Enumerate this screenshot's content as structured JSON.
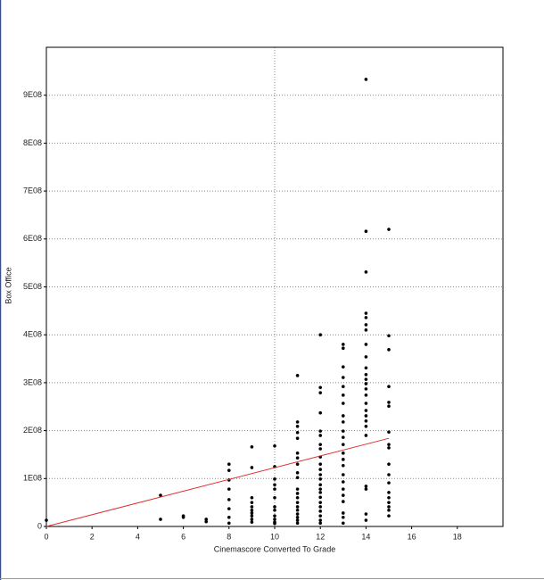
{
  "chart_data": {
    "type": "scatter",
    "x_label": "Cinemascore Converted To Grade",
    "y_label": "Box Office",
    "xlim": [
      0,
      20
    ],
    "ylim": [
      0,
      1000000000
    ],
    "xticks": [
      0,
      2,
      4,
      6,
      8,
      10,
      12,
      14,
      16,
      18
    ],
    "yticks": [
      0,
      {
        "value": 100000000,
        "label": "1E08"
      },
      {
        "value": 200000000,
        "label": "2E08"
      },
      {
        "value": 300000000,
        "label": "3E08"
      },
      {
        "value": 400000000,
        "label": "4E08"
      },
      {
        "value": 500000000,
        "label": "5E08"
      },
      {
        "value": 600000000,
        "label": "6E08"
      },
      {
        "value": 700000000,
        "label": "7E08"
      },
      {
        "value": 800000000,
        "label": "8E08"
      },
      {
        "value": 900000000,
        "label": "9E08"
      }
    ],
    "grid": true,
    "x_reference_line": 10,
    "color": "#000000",
    "fit_line": {
      "x": [
        0,
        15
      ],
      "y": [
        0,
        184000000
      ],
      "color": "#e03030"
    },
    "x": [
      0,
      5,
      5,
      6,
      6,
      7,
      7,
      8,
      8,
      8,
      8,
      8,
      8,
      8,
      8,
      9,
      9,
      9,
      9,
      9,
      9,
      9,
      9,
      9,
      9,
      10,
      10,
      10,
      10,
      10,
      10,
      10,
      10,
      10,
      10,
      10,
      10,
      11,
      11,
      11,
      11,
      11,
      11,
      11,
      11,
      11,
      11,
      11,
      11,
      11,
      11,
      11,
      11,
      11,
      11,
      11,
      11,
      12,
      12,
      12,
      12,
      12,
      12,
      12,
      12,
      12,
      12,
      12,
      12,
      12,
      12,
      12,
      12,
      12,
      12,
      12,
      12,
      12,
      12,
      12,
      13,
      13,
      13,
      13,
      13,
      13,
      13,
      13,
      13,
      13,
      13,
      13,
      13,
      13,
      13,
      13,
      13,
      13,
      13,
      13,
      13,
      13,
      13,
      14,
      14,
      14,
      14,
      14,
      14,
      14,
      14,
      14,
      14,
      14,
      14,
      14,
      14,
      14,
      14,
      14,
      14,
      14,
      14,
      14,
      14,
      14,
      14,
      14,
      15,
      15,
      15,
      15,
      15,
      15,
      15,
      15,
      15,
      15,
      15,
      15,
      15,
      15,
      15,
      15,
      15,
      15
    ],
    "values": [
      13000000.0,
      65000000.0,
      15000000.0,
      22000000.0,
      19000000.0,
      15000000.0,
      10000000.0,
      130000000.0,
      117000000.0,
      97000000.0,
      78000000.0,
      56000000.0,
      37000000.0,
      19000000.0,
      7000000.0,
      166000000.0,
      123000000.0,
      60000000.0,
      50000000.0,
      41000000.0,
      34000000.0,
      28000000.0,
      22000000.0,
      15000000.0,
      9000000.0,
      168000000.0,
      125000000.0,
      99000000.0,
      87000000.0,
      78000000.0,
      60000000.0,
      41000000.0,
      34000000.0,
      22000000.0,
      15000000.0,
      9000000.0,
      6000000.0,
      315000000.0,
      218000000.0,
      209000000.0,
      196000000.0,
      184000000.0,
      153000000.0,
      143000000.0,
      130000000.0,
      112000000.0,
      102000000.0,
      78000000.0,
      69000000.0,
      60000000.0,
      50000000.0,
      41000000.0,
      34000000.0,
      26000000.0,
      19000000.0,
      13000000.0,
      7000000.0,
      400000000.0,
      290000000.0,
      279000000.0,
      237000000.0,
      199000000.0,
      190000000.0,
      171000000.0,
      162000000.0,
      145000000.0,
      130000000.0,
      119000000.0,
      108000000.0,
      99000000.0,
      87000000.0,
      78000000.0,
      71000000.0,
      61000000.0,
      50000000.0,
      41000000.0,
      32000000.0,
      22000000.0,
      13000000.0,
      7000000.0,
      380000000.0,
      372000000.0,
      333000000.0,
      311000000.0,
      292000000.0,
      274000000.0,
      257000000.0,
      231000000.0,
      218000000.0,
      199000000.0,
      186000000.0,
      171000000.0,
      153000000.0,
      140000000.0,
      127000000.0,
      108000000.0,
      93000000.0,
      78000000.0,
      65000000.0,
      52000000.0,
      28000000.0,
      19000000.0,
      7000000.0,
      933000000.0,
      616000000.0,
      531000000.0,
      445000000.0,
      436000000.0,
      421000000.0,
      410000000.0,
      380000000.0,
      354000000.0,
      331000000.0,
      317000000.0,
      307000000.0,
      298000000.0,
      287000000.0,
      274000000.0,
      257000000.0,
      242000000.0,
      231000000.0,
      220000000.0,
      209000000.0,
      190000000.0,
      84000000.0,
      78000000.0,
      26000000.0,
      13000000.0,
      620000000.0,
      398000000.0,
      369000000.0,
      292000000.0,
      259000000.0,
      251000000.0,
      197000000.0,
      171000000.0,
      164000000.0,
      130000000.0,
      108000000.0,
      91000000.0,
      71000000.0,
      60000000.0,
      50000000.0,
      41000000.0,
      34000000.0,
      22000000.0
    ]
  }
}
